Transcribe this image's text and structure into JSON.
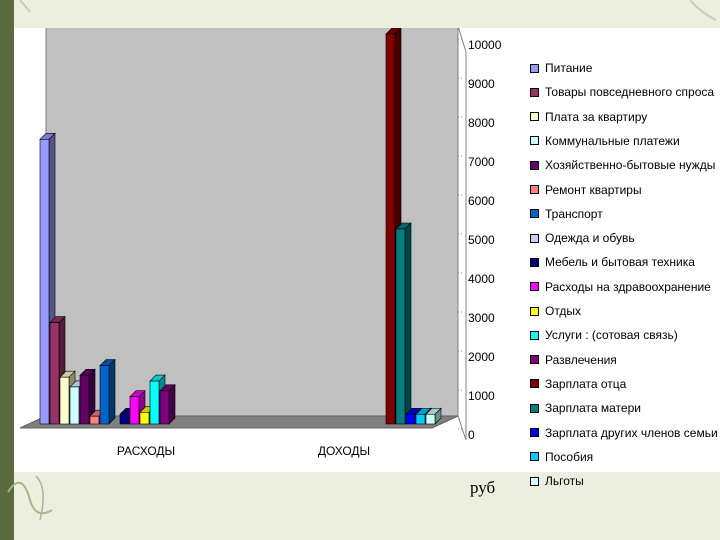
{
  "chart_data": {
    "type": "bar",
    "categories": [
      "РАСХОДЫ",
      "ДОХОДЫ"
    ],
    "ylim": [
      0,
      10000
    ],
    "yticks": [
      "0",
      "1000",
      "2000",
      "3000",
      "4000",
      "5000",
      "6000",
      "7000",
      "8000",
      "9000",
      "10000"
    ],
    "gridlines": [
      10000
    ],
    "ylabel": "руб",
    "legend_position": "right",
    "series": [
      {
        "name": "Питание",
        "color": "#9999ff",
        "values": [
          7300,
          0
        ]
      },
      {
        "name": "Товары повседневного спроса",
        "color": "#993366",
        "values": [
          2600,
          0
        ]
      },
      {
        "name": "Плата за квартиру",
        "color": "#ffffcc",
        "values": [
          1200,
          0
        ]
      },
      {
        "name": "Коммунальные платежи",
        "color": "#ccffff",
        "values": [
          950,
          0
        ]
      },
      {
        "name": "Хозяйственно-бытовые нужды",
        "color": "#660066",
        "values": [
          1250,
          0
        ]
      },
      {
        "name": "Ремонт квартиры",
        "color": "#ff8080",
        "values": [
          200,
          0
        ]
      },
      {
        "name": "Транспорт",
        "color": "#0066cc",
        "values": [
          1500,
          0
        ]
      },
      {
        "name": "Одежда и обувь",
        "color": "#ccccff",
        "values": [
          0,
          0
        ]
      },
      {
        "name": "Мебель и бытовая техника",
        "color": "#000080",
        "values": [
          250,
          0
        ]
      },
      {
        "name": "Расходы на здравоохранение",
        "color": "#ff00ff",
        "values": [
          700,
          0
        ]
      },
      {
        "name": "Отдых",
        "color": "#ffff00",
        "values": [
          300,
          0
        ]
      },
      {
        "name": "Услуги : (сотовая связь)",
        "color": "#00ffff",
        "values": [
          1100,
          0
        ]
      },
      {
        "name": "Развлечения",
        "color": "#800080",
        "values": [
          850,
          0
        ]
      },
      {
        "name": "Зарплата отца",
        "color": "#800000",
        "values": [
          0,
          10000
        ]
      },
      {
        "name": "Зарплата матери",
        "color": "#008080",
        "values": [
          0,
          5000
        ]
      },
      {
        "name": "Зарплата других членов семьи",
        "color": "#0000ff",
        "values": [
          0,
          250
        ]
      },
      {
        "name": "Пособия",
        "color": "#00ccff",
        "values": [
          0,
          250
        ]
      },
      {
        "name": "Льготы",
        "color": "#ccffff",
        "values": [
          0,
          250
        ]
      }
    ]
  }
}
